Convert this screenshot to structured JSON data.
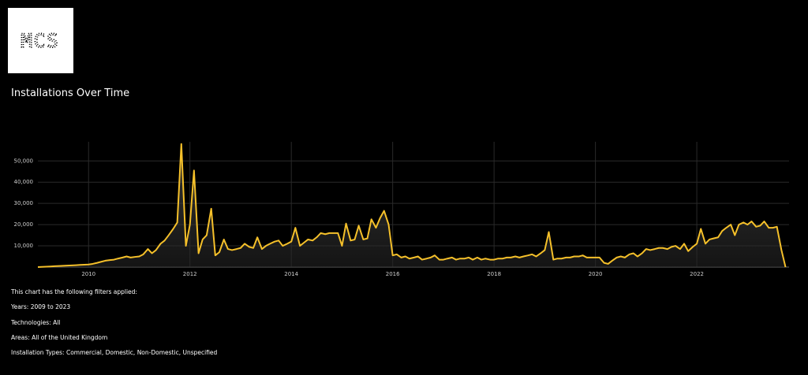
{
  "header": {
    "logo": "MCS"
  },
  "chart_data": {
    "type": "line",
    "title": "Installations Over Time",
    "color": "#f5c02a",
    "grid": true,
    "xlim": [
      2009,
      2023.82
    ],
    "xticks": [
      2010,
      2012,
      2014,
      2016,
      2018,
      2020,
      2022
    ],
    "ylim": [
      0,
      59000
    ],
    "yticks": [
      {
        "value": 10000,
        "label": "10,000"
      },
      {
        "value": 20000,
        "label": "20,000"
      },
      {
        "value": 30000,
        "label": "30,000"
      },
      {
        "value": 40000,
        "label": "40,000"
      },
      {
        "value": 50000,
        "label": "50,000"
      }
    ],
    "x": [
      2009.0,
      2009.08,
      2009.17,
      2009.25,
      2009.33,
      2009.42,
      2009.5,
      2009.58,
      2009.67,
      2009.75,
      2009.83,
      2009.92,
      2010.0,
      2010.08,
      2010.17,
      2010.25,
      2010.33,
      2010.42,
      2010.5,
      2010.58,
      2010.67,
      2010.75,
      2010.83,
      2010.92,
      2011.0,
      2011.08,
      2011.17,
      2011.25,
      2011.33,
      2011.42,
      2011.5,
      2011.58,
      2011.67,
      2011.75,
      2011.83,
      2011.92,
      2012.0,
      2012.08,
      2012.17,
      2012.25,
      2012.33,
      2012.42,
      2012.5,
      2012.58,
      2012.67,
      2012.75,
      2012.83,
      2012.92,
      2013.0,
      2013.08,
      2013.17,
      2013.25,
      2013.33,
      2013.42,
      2013.5,
      2013.58,
      2013.67,
      2013.75,
      2013.83,
      2013.92,
      2014.0,
      2014.08,
      2014.17,
      2014.25,
      2014.33,
      2014.42,
      2014.5,
      2014.58,
      2014.67,
      2014.75,
      2014.83,
      2014.92,
      2015.0,
      2015.08,
      2015.17,
      2015.25,
      2015.33,
      2015.42,
      2015.5,
      2015.58,
      2015.67,
      2015.75,
      2015.83,
      2015.92,
      2016.0,
      2016.08,
      2016.17,
      2016.25,
      2016.33,
      2016.42,
      2016.5,
      2016.58,
      2016.67,
      2016.75,
      2016.83,
      2016.92,
      2017.0,
      2017.08,
      2017.17,
      2017.25,
      2017.33,
      2017.42,
      2017.5,
      2017.58,
      2017.67,
      2017.75,
      2017.83,
      2017.92,
      2018.0,
      2018.08,
      2018.17,
      2018.25,
      2018.33,
      2018.42,
      2018.5,
      2018.58,
      2018.67,
      2018.75,
      2018.83,
      2018.92,
      2019.0,
      2019.08,
      2019.17,
      2019.25,
      2019.33,
      2019.42,
      2019.5,
      2019.58,
      2019.67,
      2019.75,
      2019.83,
      2019.92,
      2020.0,
      2020.08,
      2020.17,
      2020.25,
      2020.33,
      2020.42,
      2020.5,
      2020.58,
      2020.67,
      2020.75,
      2020.83,
      2020.92,
      2021.0,
      2021.08,
      2021.17,
      2021.25,
      2021.33,
      2021.42,
      2021.5,
      2021.58,
      2021.67,
      2021.75,
      2021.83,
      2021.92,
      2022.0,
      2022.08,
      2022.17,
      2022.25,
      2022.33,
      2022.42,
      2022.5,
      2022.58,
      2022.67,
      2022.75,
      2022.83,
      2022.92,
      2023.0,
      2023.08,
      2023.17,
      2023.25,
      2023.33,
      2023.42,
      2023.5,
      2023.58,
      2023.67,
      2023.75
    ],
    "values": [
      0,
      100,
      200,
      300,
      400,
      500,
      600,
      700,
      800,
      900,
      1000,
      1100,
      1200,
      1500,
      2000,
      2500,
      3000,
      3300,
      3500,
      4000,
      4500,
      5000,
      4500,
      4800,
      5000,
      6000,
      8500,
      6500,
      8000,
      11000,
      12500,
      15000,
      18000,
      21000,
      58000,
      10000,
      20000,
      45500,
      6500,
      13000,
      15000,
      27500,
      5500,
      7000,
      13000,
      8500,
      8000,
      8500,
      9000,
      11000,
      9500,
      9000,
      14000,
      8500,
      10000,
      11000,
      12000,
      12500,
      10000,
      11000,
      12000,
      18500,
      10000,
      11500,
      13000,
      12500,
      14000,
      16000,
      15500,
      16000,
      16000,
      16000,
      10000,
      20500,
      12500,
      13000,
      19500,
      13000,
      13500,
      22500,
      18500,
      23000,
      26500,
      20000,
      5500,
      6000,
      4500,
      5000,
      4000,
      4500,
      5000,
      3500,
      4000,
      4500,
      5500,
      3500,
      3500,
      4000,
      4500,
      3500,
      4000,
      4000,
      4500,
      3500,
      4500,
      3500,
      4000,
      3500,
      3500,
      4000,
      4000,
      4500,
      4500,
      5000,
      4500,
      5000,
      5500,
      6000,
      5000,
      6500,
      8000,
      16500,
      3500,
      4000,
      4000,
      4500,
      4500,
      5000,
      5000,
      5500,
      4500,
      4500,
      4500,
      4500,
      2000,
      1500,
      3000,
      4500,
      5000,
      4500,
      6000,
      6500,
      5000,
      6500,
      8500,
      8000,
      8500,
      9000,
      9000,
      8500,
      9500,
      10000,
      8500,
      11000,
      7500,
      9500,
      11000,
      18000,
      11000,
      13000,
      13500,
      14000,
      17000,
      18500,
      20000,
      15000,
      20000,
      21000,
      20000,
      21500,
      19000,
      19500,
      21500,
      18500,
      18500,
      19000,
      8000,
      0
    ]
  },
  "filters": {
    "heading": "This chart has the following filters applied:",
    "items": [
      "Years: 2009 to 2023",
      "Technologies: All",
      "Areas: All of the United Kingdom",
      "Installation Types: Commercial, Domestic, Non-Domestic, Unspecified"
    ]
  }
}
